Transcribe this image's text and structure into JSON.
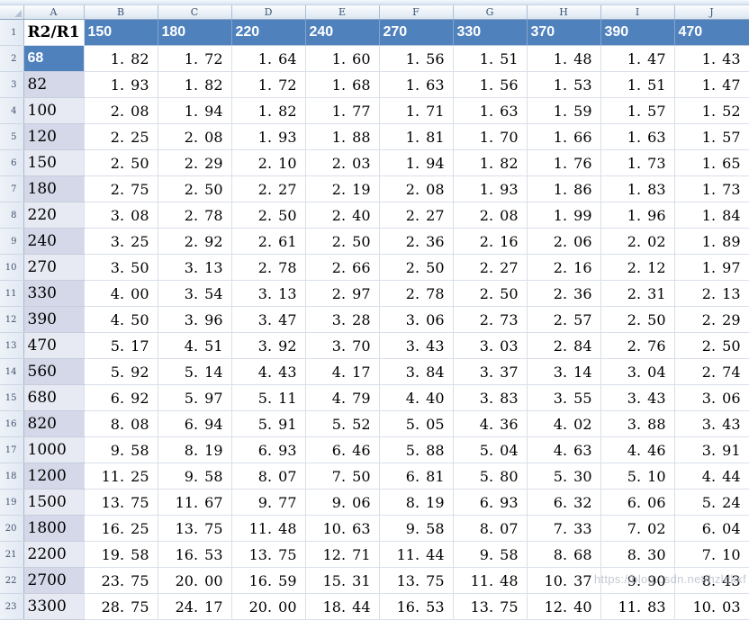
{
  "colors": {
    "header_blue": "#4f81bd",
    "band_dark": "#d4d8e8",
    "band_light": "#e7eaf3",
    "gridline": "#d9dfea"
  },
  "watermark": "https://blog.csdn.net/hzldkxf",
  "sheet": {
    "column_letters": [
      "A",
      "B",
      "C",
      "D",
      "E",
      "F",
      "G",
      "H",
      "I",
      "J"
    ],
    "row_numbers": [
      1,
      2,
      3,
      4,
      5,
      6,
      7,
      8,
      9,
      10,
      11,
      12,
      13,
      14,
      15,
      16,
      17,
      18,
      19,
      20,
      21,
      22,
      23
    ],
    "header_row": {
      "label": "R2/R1",
      "values": [
        "150",
        "180",
        "220",
        "240",
        "270",
        "330",
        "370",
        "390",
        "470"
      ]
    },
    "rows": [
      {
        "label": "68",
        "fill": "blue",
        "values": [
          "1.82",
          "1.72",
          "1.64",
          "1.60",
          "1.56",
          "1.51",
          "1.48",
          "1.47",
          "1.43"
        ]
      },
      {
        "label": "82",
        "fill": "dark",
        "values": [
          "1.93",
          "1.82",
          "1.72",
          "1.68",
          "1.63",
          "1.56",
          "1.53",
          "1.51",
          "1.47"
        ]
      },
      {
        "label": "100",
        "fill": "light",
        "values": [
          "2.08",
          "1.94",
          "1.82",
          "1.77",
          "1.71",
          "1.63",
          "1.59",
          "1.57",
          "1.52"
        ]
      },
      {
        "label": "120",
        "fill": "dark",
        "values": [
          "2.25",
          "2.08",
          "1.93",
          "1.88",
          "1.81",
          "1.70",
          "1.66",
          "1.63",
          "1.57"
        ]
      },
      {
        "label": "150",
        "fill": "light",
        "values": [
          "2.50",
          "2.29",
          "2.10",
          "2.03",
          "1.94",
          "1.82",
          "1.76",
          "1.73",
          "1.65"
        ]
      },
      {
        "label": "180",
        "fill": "dark",
        "values": [
          "2.75",
          "2.50",
          "2.27",
          "2.19",
          "2.08",
          "1.93",
          "1.86",
          "1.83",
          "1.73"
        ]
      },
      {
        "label": "220",
        "fill": "light",
        "values": [
          "3.08",
          "2.78",
          "2.50",
          "2.40",
          "2.27",
          "2.08",
          "1.99",
          "1.96",
          "1.84"
        ]
      },
      {
        "label": "240",
        "fill": "dark",
        "values": [
          "3.25",
          "2.92",
          "2.61",
          "2.50",
          "2.36",
          "2.16",
          "2.06",
          "2.02",
          "1.89"
        ]
      },
      {
        "label": "270",
        "fill": "light",
        "values": [
          "3.50",
          "3.13",
          "2.78",
          "2.66",
          "2.50",
          "2.27",
          "2.16",
          "2.12",
          "1.97"
        ]
      },
      {
        "label": "330",
        "fill": "dark",
        "values": [
          "4.00",
          "3.54",
          "3.13",
          "2.97",
          "2.78",
          "2.50",
          "2.36",
          "2.31",
          "2.13"
        ]
      },
      {
        "label": "390",
        "fill": "dark",
        "values": [
          "4.50",
          "3.96",
          "3.47",
          "3.28",
          "3.06",
          "2.73",
          "2.57",
          "2.50",
          "2.29"
        ]
      },
      {
        "label": "470",
        "fill": "light",
        "values": [
          "5.17",
          "4.51",
          "3.92",
          "3.70",
          "3.43",
          "3.03",
          "2.84",
          "2.76",
          "2.50"
        ]
      },
      {
        "label": "560",
        "fill": "dark",
        "values": [
          "5.92",
          "5.14",
          "4.43",
          "4.17",
          "3.84",
          "3.37",
          "3.14",
          "3.04",
          "2.74"
        ]
      },
      {
        "label": "680",
        "fill": "light",
        "values": [
          "6.92",
          "5.97",
          "5.11",
          "4.79",
          "4.40",
          "3.83",
          "3.55",
          "3.43",
          "3.06"
        ]
      },
      {
        "label": "820",
        "fill": "dark",
        "values": [
          "8.08",
          "6.94",
          "5.91",
          "5.52",
          "5.05",
          "4.36",
          "4.02",
          "3.88",
          "3.43"
        ]
      },
      {
        "label": "1000",
        "fill": "light",
        "values": [
          "9.58",
          "8.19",
          "6.93",
          "6.46",
          "5.88",
          "5.04",
          "4.63",
          "4.46",
          "3.91"
        ]
      },
      {
        "label": "1200",
        "fill": "dark",
        "values": [
          "11.25",
          "9.58",
          "8.07",
          "7.50",
          "6.81",
          "5.80",
          "5.30",
          "5.10",
          "4.44"
        ]
      },
      {
        "label": "1500",
        "fill": "light",
        "values": [
          "13.75",
          "11.67",
          "9.77",
          "9.06",
          "8.19",
          "6.93",
          "6.32",
          "6.06",
          "5.24"
        ]
      },
      {
        "label": "1800",
        "fill": "dark",
        "values": [
          "16.25",
          "13.75",
          "11.48",
          "10.63",
          "9.58",
          "8.07",
          "7.33",
          "7.02",
          "6.04"
        ]
      },
      {
        "label": "2200",
        "fill": "light",
        "values": [
          "19.58",
          "16.53",
          "13.75",
          "12.71",
          "11.44",
          "9.58",
          "8.68",
          "8.30",
          "7.10"
        ]
      },
      {
        "label": "2700",
        "fill": "dark",
        "values": [
          "23.75",
          "20.00",
          "16.59",
          "15.31",
          "13.75",
          "11.48",
          "10.37",
          "9.90",
          "8.43"
        ]
      },
      {
        "label": "3300",
        "fill": "light",
        "values": [
          "28.75",
          "24.17",
          "20.00",
          "18.44",
          "16.53",
          "13.75",
          "12.40",
          "11.83",
          "10.03"
        ]
      }
    ]
  }
}
